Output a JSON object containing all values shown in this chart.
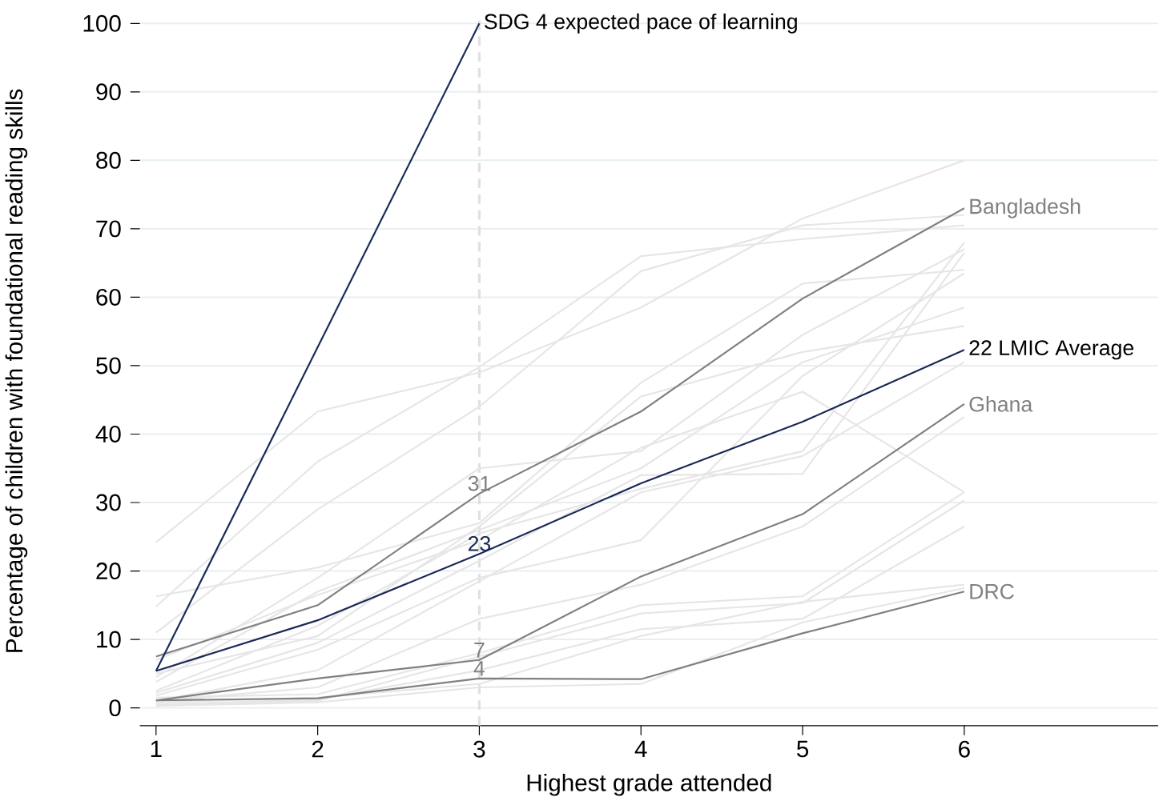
{
  "chart_data": {
    "type": "line",
    "xlabel": "Highest grade attended",
    "ylabel": "Percentage of children with foundational reading skills",
    "x": [
      1,
      2,
      3,
      4,
      5,
      6
    ],
    "xlim": [
      0.9,
      7.2
    ],
    "ylim": [
      -2.6,
      101
    ],
    "xticks": [
      1,
      2,
      3,
      4,
      5,
      6
    ],
    "yticks": [
      0,
      10,
      20,
      30,
      40,
      50,
      60,
      70,
      80,
      90,
      100
    ],
    "grid": "y",
    "marker": "none",
    "line_style": "solid",
    "series": [
      {
        "color": "#e6e6e6",
        "values": [
          24.2,
          43.3,
          49.0,
          58.5,
          71.5,
          80.0
        ]
      },
      {
        "color": "#e6e6e6",
        "values": [
          14.8,
          36.0,
          49.8,
          66.0,
          68.5,
          70.5
        ]
      },
      {
        "color": "#e6e6e6",
        "values": [
          11.0,
          29.0,
          44.0,
          63.8,
          70.5,
          72.0
        ]
      },
      {
        "color": "#e6e6e6",
        "values": [
          16.3,
          20.5,
          27.0,
          47.5,
          62.0,
          64.0
        ]
      },
      {
        "color": "#e6e6e6",
        "values": [
          4.5,
          19.0,
          35.0,
          37.5,
          54.5,
          67.0
        ]
      },
      {
        "color": "#e6e6e6",
        "values": [
          5.0,
          10.5,
          26.5,
          45.5,
          52.0,
          55.8
        ]
      },
      {
        "color": "#e6e6e6",
        "values": [
          3.8,
          17.0,
          26.0,
          35.0,
          50.5,
          58.5
        ]
      },
      {
        "color": "#e6e6e6",
        "values": [
          7.0,
          16.5,
          24.5,
          38.0,
          46.2,
          31.5
        ]
      },
      {
        "color": "#e6e6e6",
        "values": [
          2.5,
          12.0,
          25.5,
          32.0,
          37.5,
          68.0
        ]
      },
      {
        "color": "#e6e6e6",
        "values": [
          2.2,
          9.5,
          21.5,
          34.0,
          34.2,
          66.5
        ]
      },
      {
        "color": "#e6e6e6",
        "values": [
          1.8,
          8.5,
          19.0,
          24.5,
          48.5,
          63.5
        ]
      },
      {
        "color": "#e6e6e6",
        "values": [
          1.0,
          5.5,
          18.5,
          31.5,
          36.8,
          50.5
        ]
      },
      {
        "color": "#e6e6e6",
        "values": [
          1.0,
          3.0,
          13.0,
          18.0,
          26.5,
          42.5
        ]
      },
      {
        "color": "#e6e6e6",
        "values": [
          1.5,
          2.0,
          8.0,
          15.0,
          16.3,
          31.5
        ]
      },
      {
        "color": "#e6e6e6",
        "values": [
          0.5,
          1.0,
          7.5,
          13.8,
          15.3,
          30.3
        ]
      },
      {
        "color": "#e6e6e6",
        "values": [
          0.5,
          1.2,
          5.5,
          11.5,
          13.0,
          26.5
        ]
      },
      {
        "color": "#e6e6e6",
        "values": [
          0.8,
          1.5,
          3.5,
          10.5,
          15.5,
          18.0
        ]
      },
      {
        "color": "#e6e6e6",
        "values": [
          0.3,
          0.8,
          3.0,
          3.5,
          12.5,
          17.5
        ]
      },
      {
        "name": "Bangladesh",
        "color": "#808080",
        "values": [
          7.5,
          15.0,
          31.3,
          43.3,
          59.8,
          73.0
        ],
        "value_labels": [
          null,
          null,
          "31",
          null,
          null,
          null
        ]
      },
      {
        "name": "Ghana",
        "color": "#808080",
        "values": [
          1.1,
          4.3,
          7.0,
          19.2,
          28.3,
          44.4
        ],
        "value_labels": [
          null,
          null,
          "7",
          null,
          null,
          null
        ]
      },
      {
        "name": "DRC",
        "color": "#808080",
        "values": [
          1.1,
          1.4,
          4.3,
          4.2,
          10.9,
          17.0
        ],
        "value_labels": [
          null,
          null,
          "4",
          null,
          null,
          null
        ]
      },
      {
        "name": "22 LMIC Average",
        "color": "#1b2a56",
        "values": [
          5.4,
          12.8,
          22.5,
          32.8,
          41.8,
          52.3
        ],
        "value_labels": [
          null,
          null,
          "23",
          null,
          null,
          null
        ]
      },
      {
        "name": "SDG 4 expected pace of learning",
        "color": "#1b2a56",
        "x": [
          1,
          3
        ],
        "values": [
          5.4,
          100
        ]
      }
    ],
    "ref_lines": [
      {
        "axis": "x",
        "value": 3,
        "color": "#e0e0e0",
        "line_style": "dashed"
      }
    ]
  }
}
